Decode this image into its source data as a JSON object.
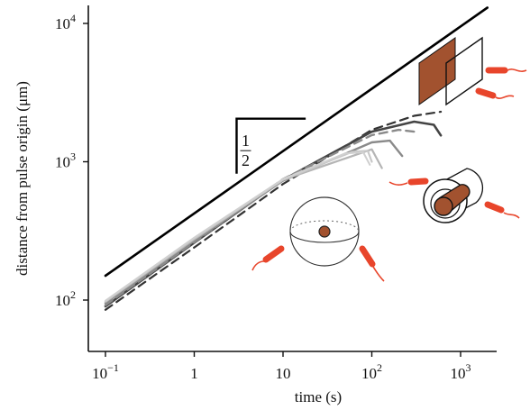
{
  "chart_data": {
    "type": "line",
    "title": "",
    "xlabel": "time (s)",
    "ylabel": "distance from pulse origin (μm)",
    "xscale": "log",
    "yscale": "log",
    "xlim": [
      0.1,
      2000
    ],
    "ylim": [
      50,
      12000
    ],
    "grid": false,
    "legend": "none",
    "x_ticks": [
      {
        "value": 0.1,
        "base": "10",
        "exp": "−1"
      },
      {
        "value": 1,
        "base": "1",
        "exp": ""
      },
      {
        "value": 10,
        "base": "10",
        "exp": ""
      },
      {
        "value": 100,
        "base": "10",
        "exp": "2"
      },
      {
        "value": 1000,
        "base": "10",
        "exp": "3"
      }
    ],
    "y_ticks": [
      {
        "value": 100,
        "base": "10",
        "exp": "2"
      },
      {
        "value": 1000,
        "base": "10",
        "exp": "3"
      },
      {
        "value": 10000,
        "base": "10",
        "exp": "4"
      }
    ],
    "slope_annotation": {
      "numerator": "1",
      "denominator": "2",
      "x": [
        3,
        18
      ],
      "y": [
        820,
        2050
      ]
    },
    "series": [
      {
        "color": "#000000",
        "style": "solid",
        "width": 2.6,
        "x": [
          0.1,
          2000
        ],
        "y": [
          150,
          13000
        ]
      },
      {
        "color": "#333333",
        "style": "dashed",
        "width": 2.2,
        "x": [
          0.1,
          1,
          10,
          100,
          300,
          600
        ],
        "y": [
          85,
          240,
          690,
          1700,
          2150,
          2300
        ]
      },
      {
        "color": "#444444",
        "style": "solid",
        "width": 2.6,
        "x": [
          0.1,
          1,
          10,
          100,
          300,
          500,
          600
        ],
        "y": [
          90,
          260,
          740,
          1650,
          1950,
          1850,
          1550
        ]
      },
      {
        "color": "#8a8a8a",
        "style": "dashed",
        "width": 2.4,
        "x": [
          0.1,
          1,
          10,
          100,
          200,
          300
        ],
        "y": [
          92,
          262,
          750,
          1560,
          1700,
          1650
        ]
      },
      {
        "color": "#8a8a8a",
        "style": "solid",
        "width": 2.4,
        "x": [
          0.1,
          1,
          10,
          100,
          160,
          220
        ],
        "y": [
          95,
          268,
          730,
          1380,
          1420,
          1100
        ]
      },
      {
        "color": "#b5b5b5",
        "style": "solid",
        "width": 2.2,
        "x": [
          0.1,
          1,
          10,
          100,
          130
        ],
        "y": [
          97,
          275,
          740,
          1230,
          900
        ]
      },
      {
        "color": "#c8c8c8",
        "style": "solid",
        "width": 2.2,
        "x": [
          0.1,
          1,
          10,
          60,
          90,
          100
        ],
        "y": [
          98,
          280,
          740,
          1180,
          1200,
          1000
        ]
      },
      {
        "color": "#d0d0d0",
        "style": "solid",
        "width": 2.0,
        "x": [
          0.1,
          1,
          10,
          50,
          80,
          95
        ],
        "y": [
          99,
          283,
          750,
          1150,
          1170,
          950
        ]
      }
    ]
  },
  "colors": {
    "bacteria": "#e8452b",
    "source_fill": "#a2522f",
    "axis": "#111111"
  }
}
